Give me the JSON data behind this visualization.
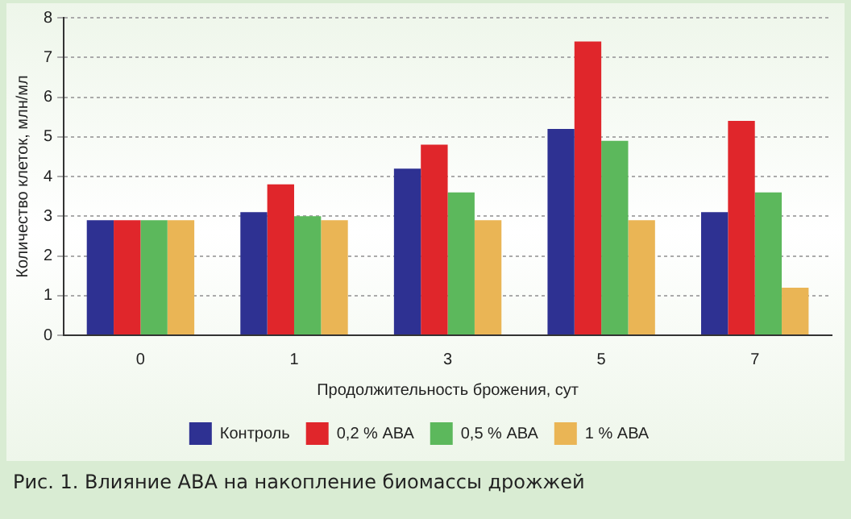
{
  "chart_data": {
    "type": "bar",
    "xlabel": "Продолжительность брожения, сут",
    "ylabel": "Количество клеток, млн/мл",
    "categories": [
      "0",
      "1",
      "3",
      "5",
      "7"
    ],
    "series": [
      {
        "name": "Контроль",
        "color": "#2e3192",
        "values": [
          2.9,
          3.1,
          4.2,
          5.2,
          3.1
        ]
      },
      {
        "name": "0,2 % АВА",
        "color": "#e0262b",
        "values": [
          2.9,
          3.8,
          4.8,
          7.4,
          5.4
        ]
      },
      {
        "name": "0,5 % АВА",
        "color": "#5cb85c",
        "values": [
          2.9,
          3.0,
          3.6,
          4.9,
          3.6
        ]
      },
      {
        "name": "1 % АВА",
        "color": "#eab555",
        "values": [
          2.9,
          2.9,
          2.9,
          2.9,
          1.2
        ]
      }
    ],
    "ylim": [
      0,
      8
    ],
    "yticks": [
      0,
      1,
      2,
      3,
      4,
      5,
      6,
      7,
      8
    ],
    "grid": "y",
    "legend": "bottom",
    "annotations": [
      "Рис. 1. Влияние АВА на  накопление биомассы дрожжей"
    ]
  }
}
